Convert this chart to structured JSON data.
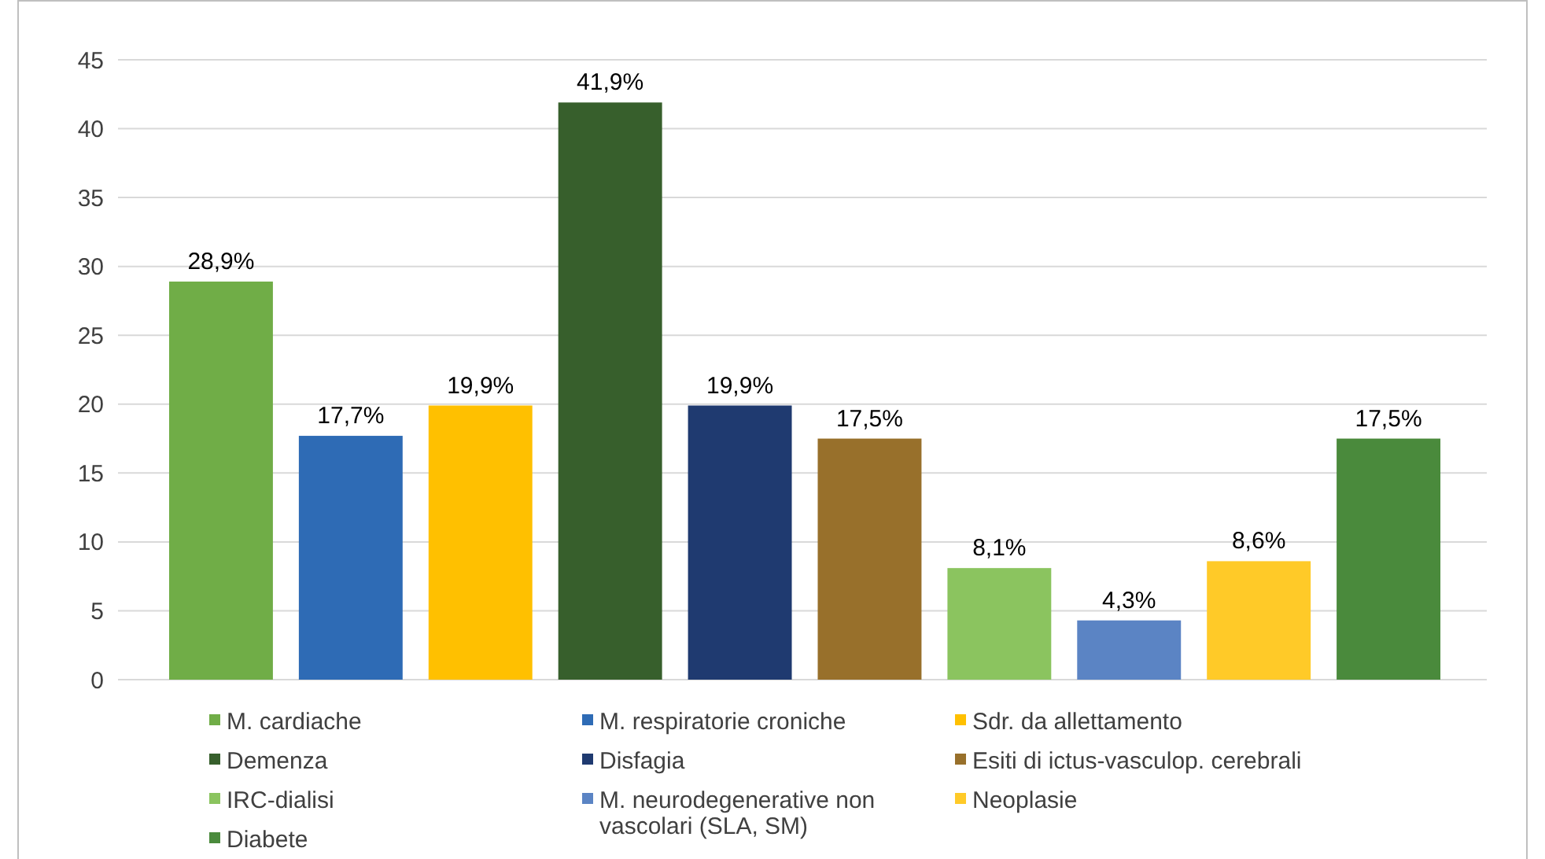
{
  "chart_data": {
    "type": "bar",
    "categories": [
      null,
      null,
      null,
      null,
      null,
      null,
      null,
      null,
      null,
      null
    ],
    "series": [
      {
        "name": "M. cardiache",
        "color": "#70ad47",
        "values": [
          28.9,
          null,
          null,
          null,
          null,
          null,
          null,
          null,
          null,
          null
        ],
        "value_labels": [
          "28,9%",
          null,
          null,
          null,
          null,
          null,
          null,
          null,
          null,
          null
        ]
      },
      {
        "name": "M. respiratorie croniche",
        "color": "#2e6bb5",
        "values": [
          null,
          17.7,
          null,
          null,
          null,
          null,
          null,
          null,
          null,
          null
        ],
        "value_labels": [
          null,
          "17,7%",
          null,
          null,
          null,
          null,
          null,
          null,
          null,
          null
        ]
      },
      {
        "name": "Sdr. da allettamento",
        "color": "#ffc000",
        "values": [
          null,
          null,
          19.9,
          null,
          null,
          null,
          null,
          null,
          null,
          null
        ],
        "value_labels": [
          null,
          null,
          "19,9%",
          null,
          null,
          null,
          null,
          null,
          null,
          null
        ]
      },
      {
        "name": "Demenza",
        "color": "#375f2c",
        "values": [
          null,
          null,
          null,
          41.9,
          null,
          null,
          null,
          null,
          null,
          null
        ],
        "value_labels": [
          null,
          null,
          null,
          "41,9%",
          null,
          null,
          null,
          null,
          null,
          null
        ]
      },
      {
        "name": "Disfagia",
        "color": "#1f3a70",
        "values": [
          null,
          null,
          null,
          null,
          19.9,
          null,
          null,
          null,
          null,
          null
        ],
        "value_labels": [
          null,
          null,
          null,
          null,
          "19,9%",
          null,
          null,
          null,
          null,
          null
        ]
      },
      {
        "name": "Esiti di ictus-vasculop. cerebrali",
        "color": "#98702b",
        "values": [
          null,
          null,
          null,
          null,
          null,
          17.5,
          null,
          null,
          null,
          null
        ],
        "value_labels": [
          null,
          null,
          null,
          null,
          null,
          "17,5%",
          null,
          null,
          null,
          null
        ]
      },
      {
        "name": "IRC-dialisi",
        "color": "#8bc45f",
        "values": [
          null,
          null,
          null,
          null,
          null,
          null,
          8.1,
          null,
          null,
          null
        ],
        "value_labels": [
          null,
          null,
          null,
          null,
          null,
          null,
          "8,1%",
          null,
          null,
          null
        ]
      },
      {
        "name": "M. neurodegenerative non vascolari (SLA, SM)",
        "color": "#5b84c4",
        "values": [
          null,
          null,
          null,
          null,
          null,
          null,
          null,
          4.3,
          null,
          null
        ],
        "value_labels": [
          null,
          null,
          null,
          null,
          null,
          null,
          null,
          "4,3%",
          null,
          null
        ]
      },
      {
        "name": "Neoplasie",
        "color": "#ffca28",
        "values": [
          null,
          null,
          null,
          null,
          null,
          null,
          null,
          null,
          8.6,
          null
        ],
        "value_labels": [
          null,
          null,
          null,
          null,
          null,
          null,
          null,
          null,
          "8,6%",
          null
        ]
      },
      {
        "name": "Diabete",
        "color": "#4a8a3c",
        "values": [
          null,
          null,
          null,
          null,
          null,
          null,
          null,
          null,
          null,
          17.5
        ],
        "value_labels": [
          null,
          null,
          null,
          null,
          null,
          null,
          null,
          null,
          null,
          "17,5%"
        ]
      }
    ],
    "ylim": [
      0,
      45
    ],
    "yticks": [
      0,
      5,
      10,
      15,
      20,
      25,
      30,
      35,
      40,
      45
    ],
    "grid": "y",
    "legend": "bottom",
    "tick_labels": "y"
  }
}
